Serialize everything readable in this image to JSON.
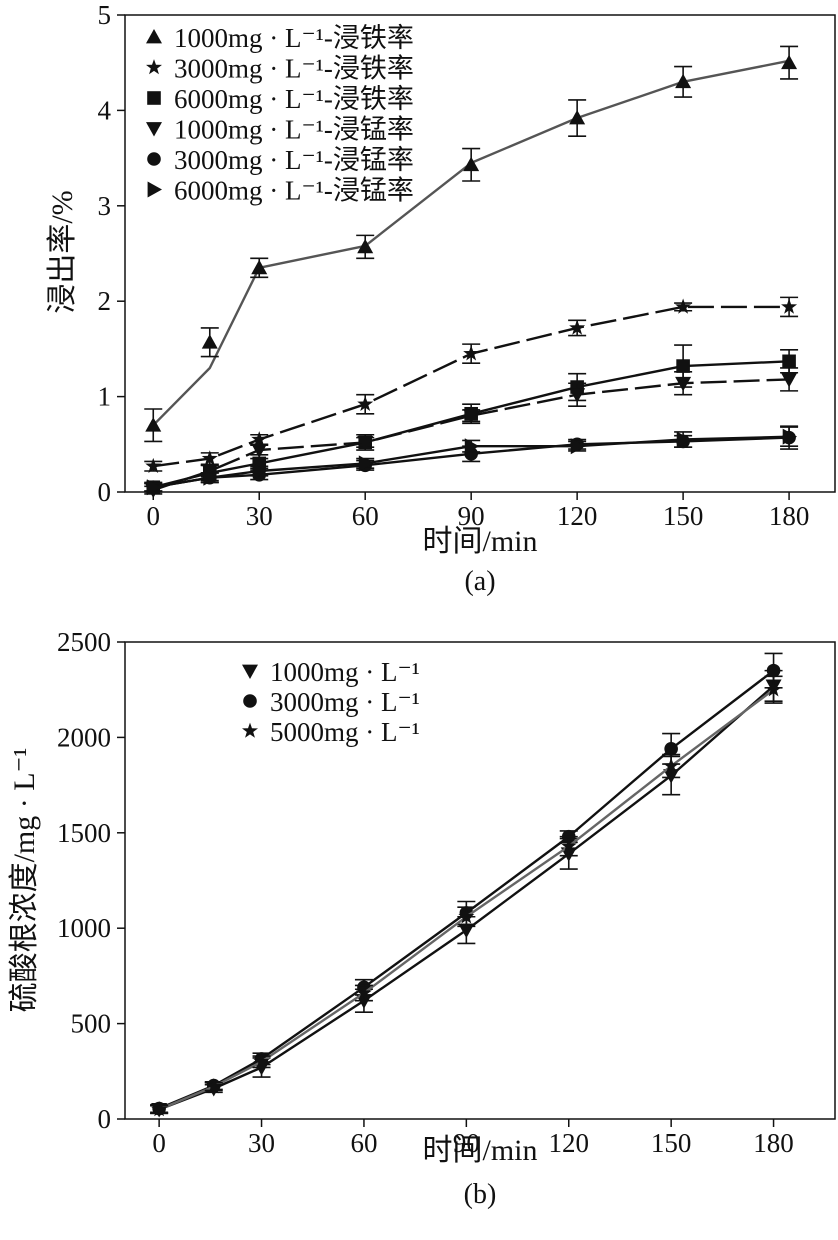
{
  "chart_data": [
    {
      "type": "line",
      "panel_label": "(a)",
      "xlabel": "时间/min",
      "ylabel": "浸出率/%",
      "xlim": [
        -8,
        193
      ],
      "ylim": [
        0,
        5
      ],
      "xticks": [
        0,
        30,
        60,
        90,
        120,
        150,
        180
      ],
      "yticks": [
        0,
        1,
        2,
        3,
        4,
        5
      ],
      "legend_position": "top-left",
      "series": [
        {
          "name": "1000mg · L⁻¹-浸铁率",
          "marker": "triangle-up",
          "line_color": "#555555",
          "dashed": false,
          "x": [
            0,
            16,
            30,
            60,
            90,
            120,
            150,
            180
          ],
          "y": [
            0.7,
            1.3,
            2.35,
            2.58,
            3.45,
            3.92,
            4.3,
            4.52
          ],
          "marker_y": [
            0.7,
            1.57,
            2.35,
            2.57,
            3.43,
            3.92,
            4.3,
            4.5
          ],
          "err": [
            0.17,
            0.15,
            0.1,
            0.12,
            0.17,
            0.19,
            0.16,
            0.17
          ]
        },
        {
          "name": "3000mg · L⁻¹-浸铁率",
          "marker": "star",
          "line_color": "#111111",
          "dashed": true,
          "x": [
            0,
            16,
            30,
            60,
            90,
            120,
            150,
            180
          ],
          "y": [
            0.27,
            0.35,
            0.55,
            0.92,
            1.45,
            1.72,
            1.94,
            1.94
          ],
          "err": [
            0.05,
            0.06,
            0.05,
            0.1,
            0.1,
            0.08,
            0.04,
            0.1
          ]
        },
        {
          "name": "6000mg · L⁻¹-浸铁率",
          "marker": "square",
          "line_color": "#111111",
          "dashed": false,
          "x": [
            0,
            16,
            30,
            60,
            90,
            120,
            150,
            180
          ],
          "y": [
            0.05,
            0.2,
            0.3,
            0.52,
            0.82,
            1.1,
            1.32,
            1.37
          ],
          "err": [
            0.05,
            0.08,
            0.05,
            0.08,
            0.1,
            0.14,
            0.22,
            0.12
          ]
        },
        {
          "name": "1000mg · L⁻¹-浸锰率",
          "marker": "triangle-down",
          "line_color": "#111111",
          "dashed": true,
          "x": [
            0,
            16,
            30,
            60,
            90,
            120,
            150,
            180
          ],
          "y": [
            0.02,
            0.22,
            0.44,
            0.52,
            0.8,
            1.02,
            1.14,
            1.18
          ],
          "err": [
            0.04,
            0.06,
            0.05,
            0.05,
            0.06,
            0.12,
            0.12,
            0.12
          ]
        },
        {
          "name": "3000mg · L⁻¹-浸锰率",
          "marker": "circle",
          "line_color": "#111111",
          "dashed": false,
          "x": [
            0,
            16,
            30,
            60,
            90,
            120,
            150,
            180
          ],
          "y": [
            0.05,
            0.15,
            0.18,
            0.28,
            0.4,
            0.5,
            0.53,
            0.57
          ],
          "err": [
            0.04,
            0.05,
            0.05,
            0.05,
            0.08,
            0.05,
            0.06,
            0.12
          ]
        },
        {
          "name": "6000mg · L⁻¹-浸锰率",
          "marker": "triangle-right",
          "line_color": "#111111",
          "dashed": false,
          "x": [
            0,
            16,
            30,
            60,
            90,
            120,
            150,
            180
          ],
          "y": [
            0.05,
            0.15,
            0.22,
            0.3,
            0.48,
            0.48,
            0.55,
            0.58
          ],
          "err": [
            0.04,
            0.05,
            0.05,
            0.05,
            0.06,
            0.05,
            0.08,
            0.1
          ]
        }
      ]
    },
    {
      "type": "line",
      "panel_label": "(b)",
      "xlabel": "时间/min",
      "ylabel": "硫酸根浓度/mg · L⁻¹",
      "xlim": [
        -10,
        198
      ],
      "ylim": [
        0,
        2500
      ],
      "xticks": [
        0,
        30,
        60,
        90,
        120,
        150,
        180
      ],
      "yticks": [
        0,
        500,
        1000,
        1500,
        2000,
        2500
      ],
      "legend_position": "top-left",
      "series": [
        {
          "name": "1000mg · L⁻¹",
          "marker": "triangle-down",
          "line_color": "#111111",
          "x": [
            0,
            16,
            30,
            60,
            90,
            120,
            150,
            180
          ],
          "y": [
            50,
            160,
            270,
            620,
            990,
            1390,
            1800,
            2270
          ],
          "err": [
            20,
            20,
            50,
            60,
            70,
            80,
            100,
            80
          ]
        },
        {
          "name": "3000mg · L⁻¹",
          "marker": "circle",
          "line_color": "#111111",
          "x": [
            0,
            16,
            30,
            60,
            90,
            120,
            150,
            180
          ],
          "y": [
            55,
            175,
            315,
            690,
            1080,
            1480,
            1940,
            2350
          ],
          "err": [
            20,
            20,
            30,
            40,
            60,
            30,
            80,
            90
          ]
        },
        {
          "name": "5000mg · L⁻¹",
          "marker": "star",
          "line_color": "#666666",
          "x": [
            0,
            16,
            30,
            60,
            90,
            120,
            150,
            180
          ],
          "y": [
            50,
            170,
            300,
            660,
            1060,
            1430,
            1850,
            2250
          ],
          "err": [
            20,
            20,
            30,
            40,
            50,
            50,
            60,
            70
          ]
        }
      ]
    }
  ]
}
